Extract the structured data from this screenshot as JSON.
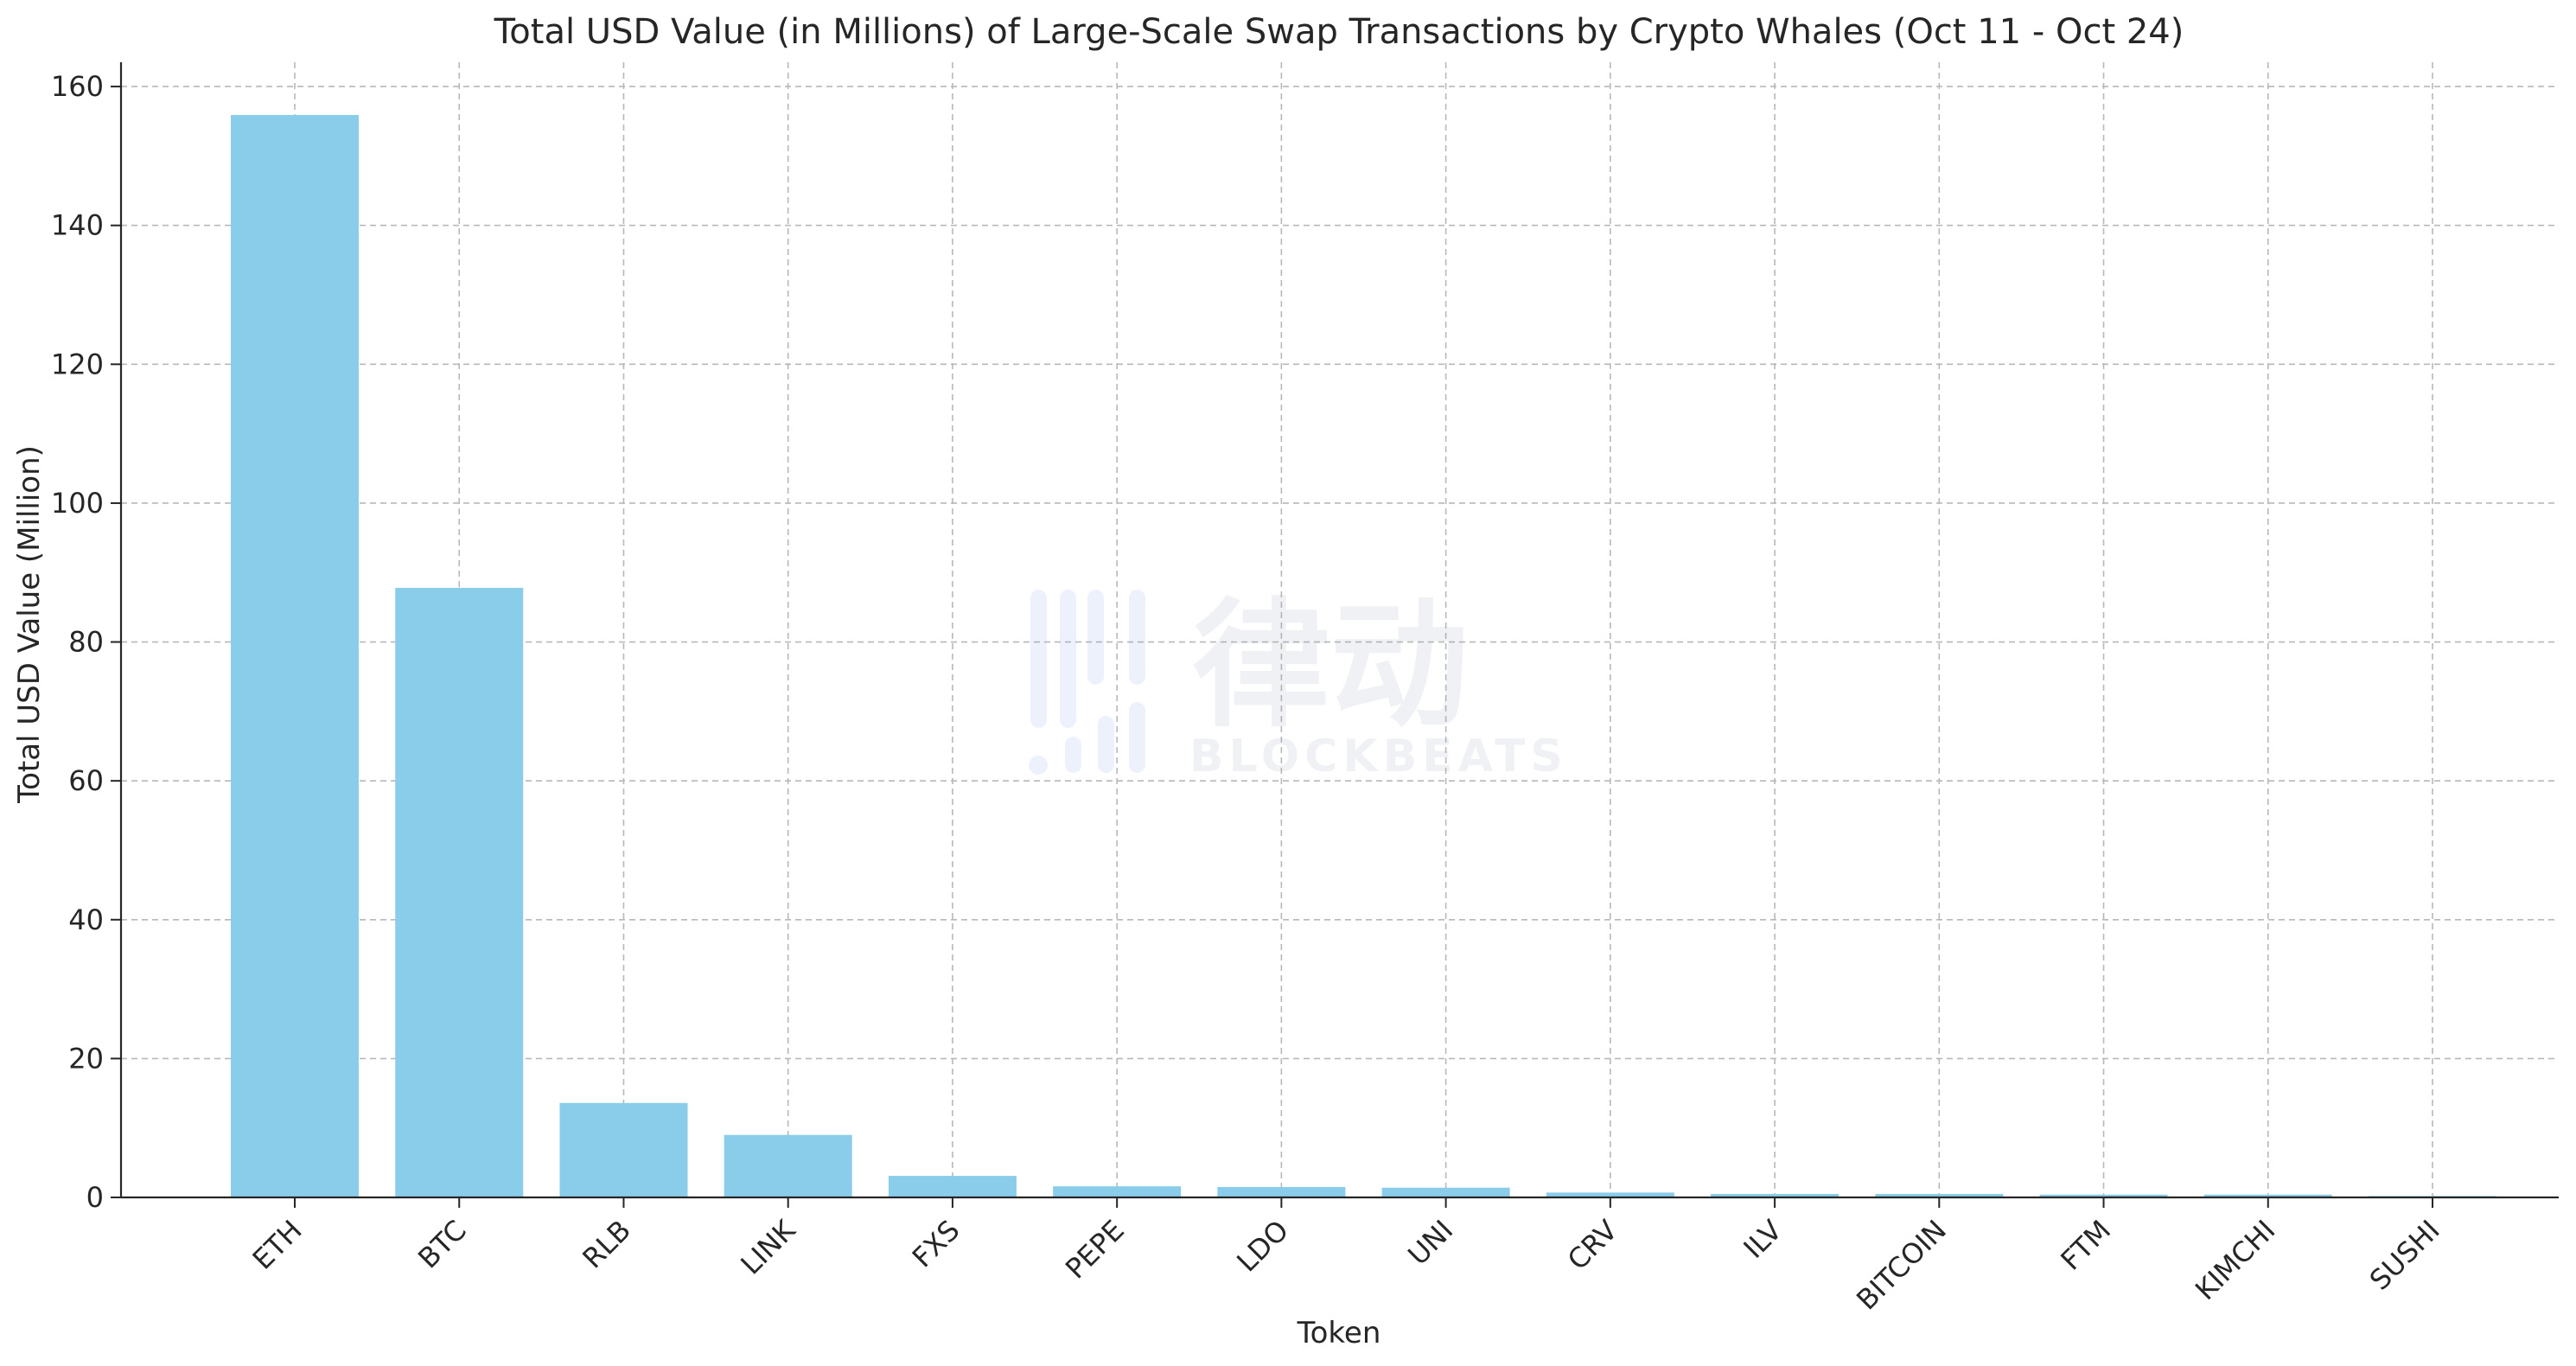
{
  "chart_data": {
    "type": "bar",
    "title": "Total USD Value (in Millions) of Large-Scale Swap Transactions by Crypto Whales (Oct 11 - Oct 24)",
    "xlabel": "Token",
    "ylabel": "Total USD Value (Million)",
    "categories": [
      "ETH",
      "BTC",
      "RLB",
      "LINK",
      "FXS",
      "PEPE",
      "LDO",
      "UNI",
      "CRV",
      "ILV",
      "BITCOIN",
      "FTM",
      "KIMCHI",
      "SUSHI"
    ],
    "values": [
      155.9,
      87.8,
      13.6,
      9.0,
      3.1,
      1.6,
      1.5,
      1.4,
      0.7,
      0.5,
      0.5,
      0.4,
      0.4,
      0.2
    ],
    "ylim": [
      0,
      163.5
    ],
    "yticks": [
      0,
      20,
      40,
      60,
      80,
      100,
      120,
      140,
      160
    ],
    "grid": true,
    "grid_style": "dashed",
    "bar_color": "#89CDEA",
    "watermark": {
      "text_cn": "律动",
      "text_en": "BLOCKBEATS"
    }
  }
}
